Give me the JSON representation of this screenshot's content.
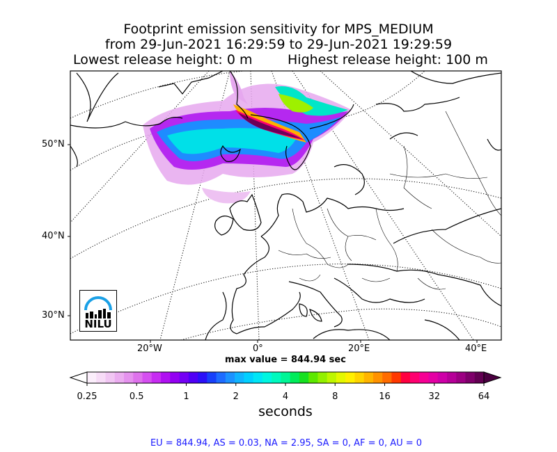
{
  "title": {
    "line1": "Footprint emission sensitivity for MPS_MEDIUM",
    "line2": "from 29-Jun-2021 16:29:59 to 29-Jun-2021 19:29:59",
    "lowest": "Lowest release height: 0 m",
    "highest": "Highest release height: 100 m"
  },
  "axes": {
    "lat_labels": [
      "50°N",
      "40°N",
      "30°N"
    ],
    "lon_labels": [
      "20°W",
      "0°",
      "20°E",
      "40°E"
    ]
  },
  "max_value_label": "max value = 844.94 sec",
  "colorbar": {
    "ticks": [
      "0.25",
      "0.5",
      "1",
      "2",
      "4",
      "8",
      "16",
      "32",
      "64"
    ],
    "units": "seconds",
    "colors": [
      "#fbeefb",
      "#f7dcf7",
      "#f1c6f3",
      "#ebadf0",
      "#e592ee",
      "#de72ec",
      "#d54ff0",
      "#c72cf2",
      "#b010f2",
      "#9400f2",
      "#7400f4",
      "#5000f6",
      "#2b10f8",
      "#1840fa",
      "#1e6cff",
      "#1c92ff",
      "#10b4ff",
      "#00d0ff",
      "#00e6f6",
      "#00f6e0",
      "#00fabe",
      "#00f696",
      "#00ec5a",
      "#16e020",
      "#5ce800",
      "#92f000",
      "#bef600",
      "#e4f800",
      "#fff000",
      "#ffd400",
      "#ffb400",
      "#ff9200",
      "#ff6c00",
      "#ff3800",
      "#ff0040",
      "#ff0070",
      "#f60094",
      "#e400a4",
      "#ce00a8",
      "#b60098",
      "#9c0082",
      "#7e006a",
      "#620052"
    ],
    "over_color": "#4a0040"
  },
  "stats_line": "EU = 844.94,  AS = 0.03,  NA = 2.95,  SA = 0,  AF = 0,  AU = 0",
  "logo": {
    "text": "NILU",
    "arc_color": "#1aa0e6"
  }
}
